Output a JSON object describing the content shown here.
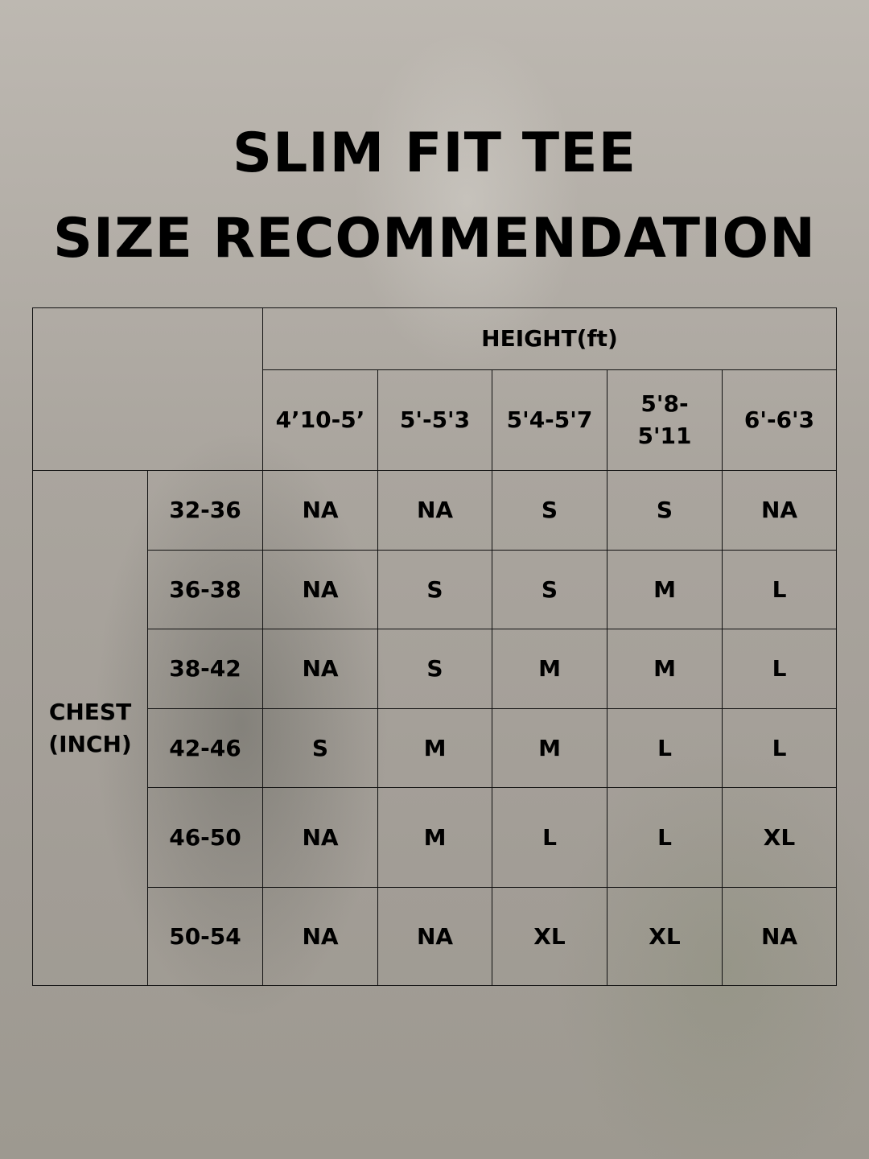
{
  "title_line1": "SLIM FIT TEE",
  "title_line2": "SIZE RECOMMENDATION",
  "height_header": "HEIGHT(ft)",
  "chest_header": "CHEST (INCH)",
  "height_columns": [
    "4’10-5’",
    "5'-5'3",
    "5'4-5'7",
    "5'8-5'11",
    "6'-6'3"
  ],
  "rows": [
    {
      "chest": "32-36",
      "sizes": [
        "NA",
        "NA",
        "S",
        "S",
        "NA"
      ]
    },
    {
      "chest": "36-38",
      "sizes": [
        "NA",
        "S",
        "S",
        "M",
        "L"
      ]
    },
    {
      "chest": "38-42",
      "sizes": [
        "NA",
        "S",
        "M",
        "M",
        "L"
      ]
    },
    {
      "chest": "42-46",
      "sizes": [
        "S",
        "M",
        "M",
        "L",
        "L"
      ]
    },
    {
      "chest": "46-50",
      "sizes": [
        "NA",
        "M",
        "L",
        "L",
        "XL"
      ]
    },
    {
      "chest": "50-54",
      "sizes": [
        "NA",
        "NA",
        "XL",
        "XL",
        "NA"
      ]
    }
  ]
}
